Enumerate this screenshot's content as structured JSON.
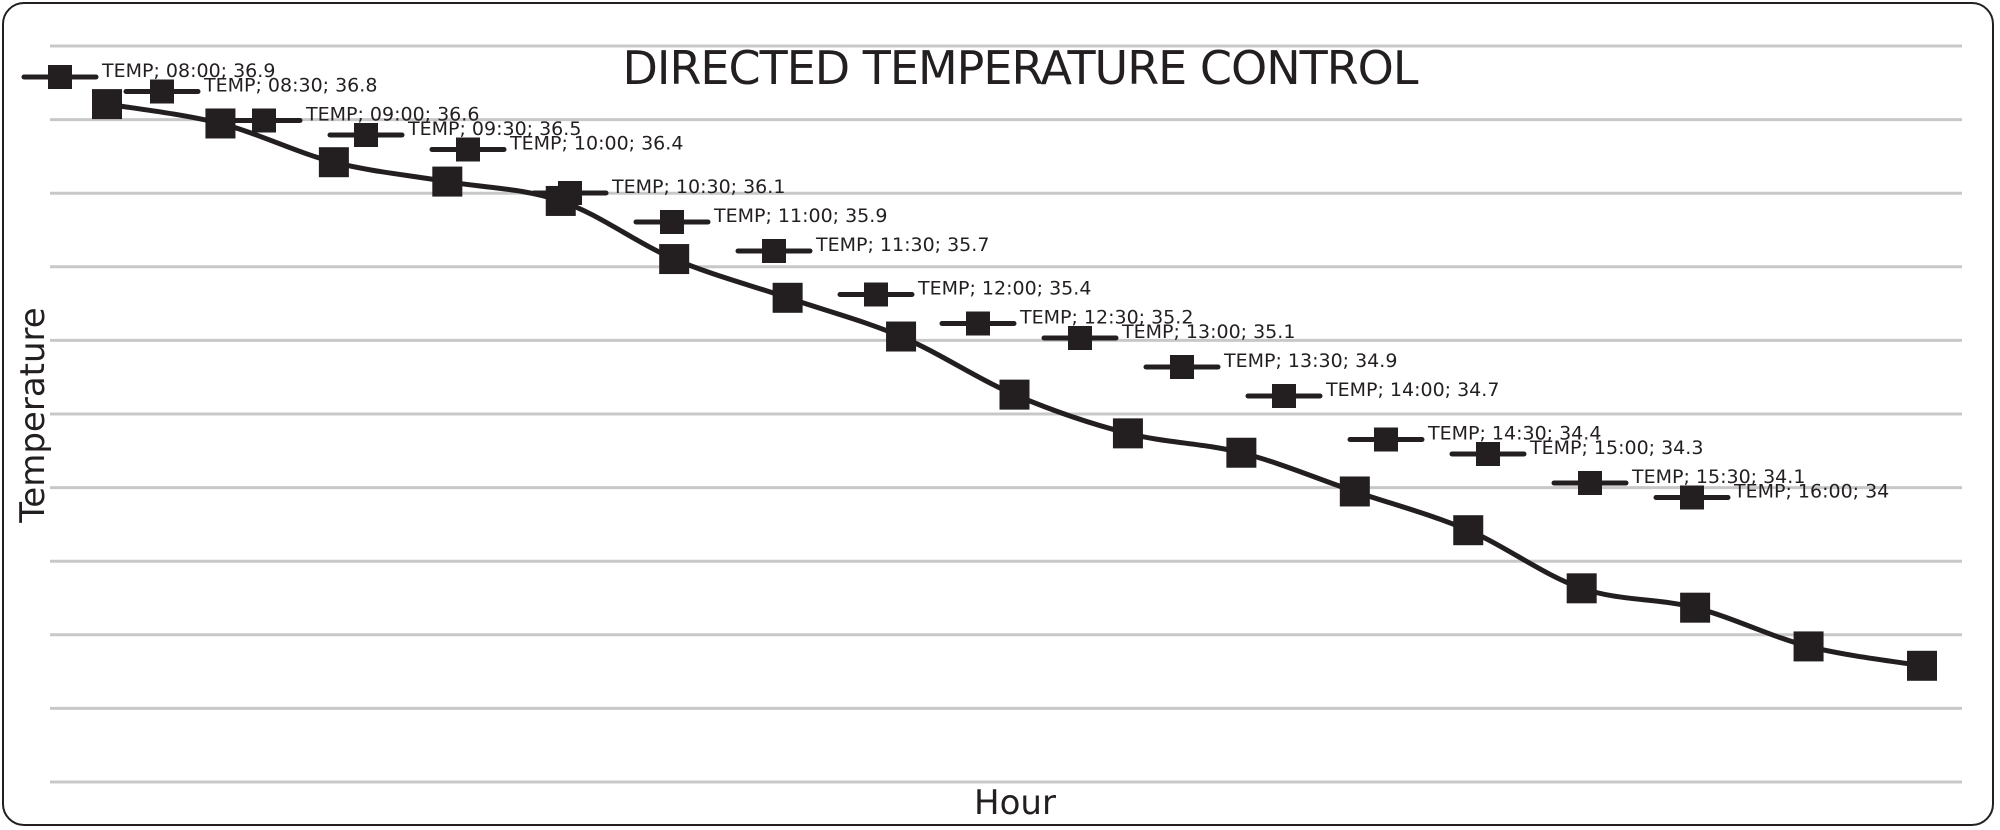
{
  "chart_data": {
    "type": "line",
    "title": "DIRECTED TEMPERATURE CONTROL",
    "xlabel": "Hour",
    "ylabel": "Temperature",
    "grid": true,
    "legend": "none",
    "series": [
      {
        "name": "TEMP",
        "x": [
          "08:00",
          "08:30",
          "09:00",
          "09:30",
          "10:00",
          "10:30",
          "11:00",
          "11:30",
          "12:00",
          "12:30",
          "13:00",
          "13:30",
          "14:00",
          "14:30",
          "15:00",
          "15:30",
          "16:00"
        ],
        "values": [
          36.9,
          36.8,
          36.6,
          36.5,
          36.4,
          36.1,
          35.9,
          35.7,
          35.4,
          35.2,
          35.1,
          34.9,
          34.7,
          34.4,
          34.3,
          34.1,
          34
        ],
        "labels": [
          "TEMP; 08:00; 36.9",
          "TEMP; 08:30; 36.8",
          "TEMP; 09:00; 36.6",
          "TEMP; 09:30; 36.5",
          "TEMP; 10:00; 36.4",
          "TEMP; 10:30; 36.1",
          "TEMP; 11:00; 35.9",
          "TEMP; 11:30; 35.7",
          "TEMP; 12:00; 35.4",
          "TEMP; 12:30; 35.2",
          "TEMP; 13:00; 35.1",
          "TEMP; 13:30; 34.9",
          "TEMP; 14:00; 34.7",
          "TEMP; 14:30; 34.4",
          "TEMP; 15:00; 34.3",
          "TEMP; 15:30; 34.1",
          "TEMP; 16:00; 34"
        ]
      }
    ],
    "ylim": [
      33.4,
      37.2
    ]
  }
}
